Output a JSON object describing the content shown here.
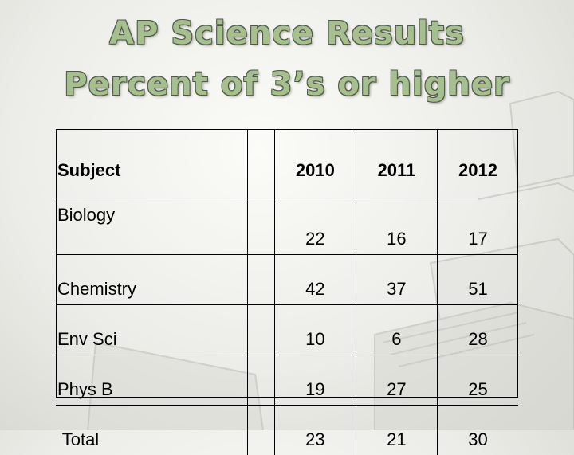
{
  "title": {
    "line1": "AP Science Results",
    "line2": "Percent of 3’s or higher"
  },
  "table": {
    "header": {
      "subject": "Subject",
      "years": [
        "2010",
        "2011",
        "2012"
      ]
    },
    "rows": [
      {
        "subject": "Biology",
        "values": [
          "22",
          "16",
          "17"
        ]
      },
      {
        "subject": "Chemistry",
        "values": [
          "42",
          "37",
          "51"
        ]
      },
      {
        "subject": "Env Sci",
        "values": [
          "10",
          "6",
          "28"
        ]
      },
      {
        "subject": "Phys B",
        "values": [
          "19",
          "27",
          "25"
        ]
      },
      {
        "subject": " Total",
        "values": [
          "23",
          "21",
          "30"
        ]
      }
    ]
  }
}
